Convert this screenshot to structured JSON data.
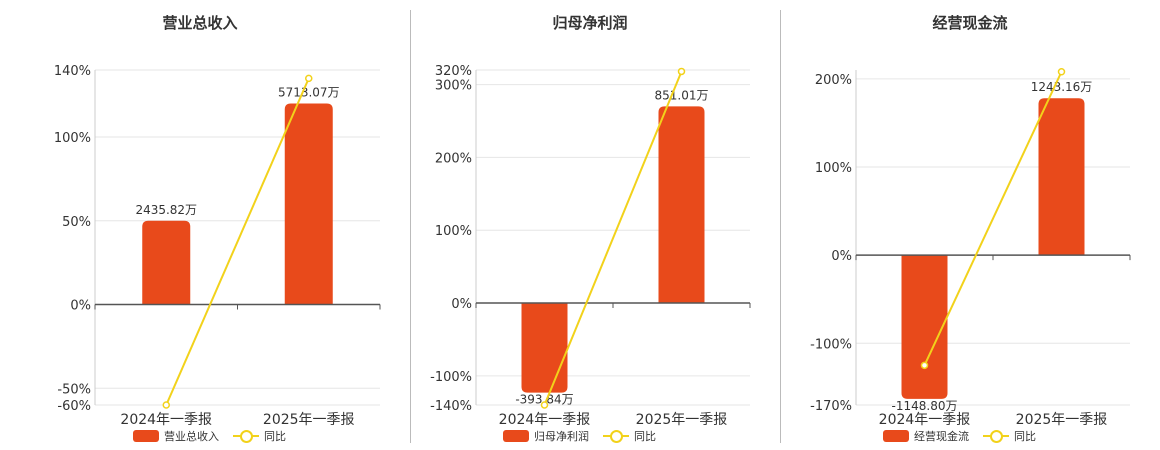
{
  "colors": {
    "bar": "#e84a1b",
    "line": "#f2d21b",
    "grid": "#e6e6e6",
    "axis": "#555555",
    "text": "#333333"
  },
  "chart_data": [
    {
      "type": "bar",
      "title": "营业总收入",
      "categories": [
        "2024年一季报",
        "2025年一季报"
      ],
      "bar_labels": [
        "2435.82万",
        "5713.07万"
      ],
      "series": [
        {
          "name": "营业总收入",
          "kind": "bar",
          "values": [
            50,
            120
          ]
        },
        {
          "name": "同比",
          "kind": "line",
          "values": [
            -60,
            135
          ]
        }
      ],
      "yticks": [
        {
          "value": 140,
          "label": "140%"
        },
        {
          "value": 100,
          "label": "100%"
        },
        {
          "value": 50,
          "label": "50%"
        },
        {
          "value": 0,
          "label": "0%"
        },
        {
          "value": -50,
          "label": "-50%"
        },
        {
          "value": -60,
          "label": "-60%"
        }
      ],
      "ylim": [
        -60,
        140
      ],
      "legend": [
        {
          "label": "营业总收入",
          "kind": "bar"
        },
        {
          "label": "同比",
          "kind": "line"
        }
      ]
    },
    {
      "type": "bar",
      "title": "归母净利润",
      "categories": [
        "2024年一季报",
        "2025年一季报"
      ],
      "bar_labels": [
        "-393.84万",
        "851.01万"
      ],
      "series": [
        {
          "name": "归母净利润",
          "kind": "bar",
          "values": [
            -123,
            270
          ]
        },
        {
          "name": "同比",
          "kind": "line",
          "values": [
            -140,
            318
          ]
        }
      ],
      "yticks": [
        {
          "value": 320,
          "label": "320%"
        },
        {
          "value": 300,
          "label": "300%"
        },
        {
          "value": 200,
          "label": "200%"
        },
        {
          "value": 100,
          "label": "100%"
        },
        {
          "value": 0,
          "label": "0%"
        },
        {
          "value": -100,
          "label": "-100%"
        },
        {
          "value": -140,
          "label": "-140%"
        }
      ],
      "ylim": [
        -140,
        320
      ],
      "legend": [
        {
          "label": "归母净利润",
          "kind": "bar"
        },
        {
          "label": "同比",
          "kind": "line"
        }
      ]
    },
    {
      "type": "bar",
      "title": "经营现金流",
      "categories": [
        "2024年一季报",
        "2025年一季报"
      ],
      "bar_labels": [
        "-1148.80万",
        "1243.16万"
      ],
      "series": [
        {
          "name": "经营现金流",
          "kind": "bar",
          "values": [
            -163,
            178
          ]
        },
        {
          "name": "同比",
          "kind": "line",
          "values": [
            -125,
            208
          ]
        }
      ],
      "yticks": [
        {
          "value": 200,
          "label": "200%"
        },
        {
          "value": 100,
          "label": "100%"
        },
        {
          "value": 0,
          "label": "0%"
        },
        {
          "value": -100,
          "label": "-100%"
        },
        {
          "value": -170,
          "label": "-170%"
        }
      ],
      "ylim": [
        -170,
        210
      ],
      "legend": [
        {
          "label": "经营现金流",
          "kind": "bar"
        },
        {
          "label": "同比",
          "kind": "line"
        }
      ]
    }
  ]
}
